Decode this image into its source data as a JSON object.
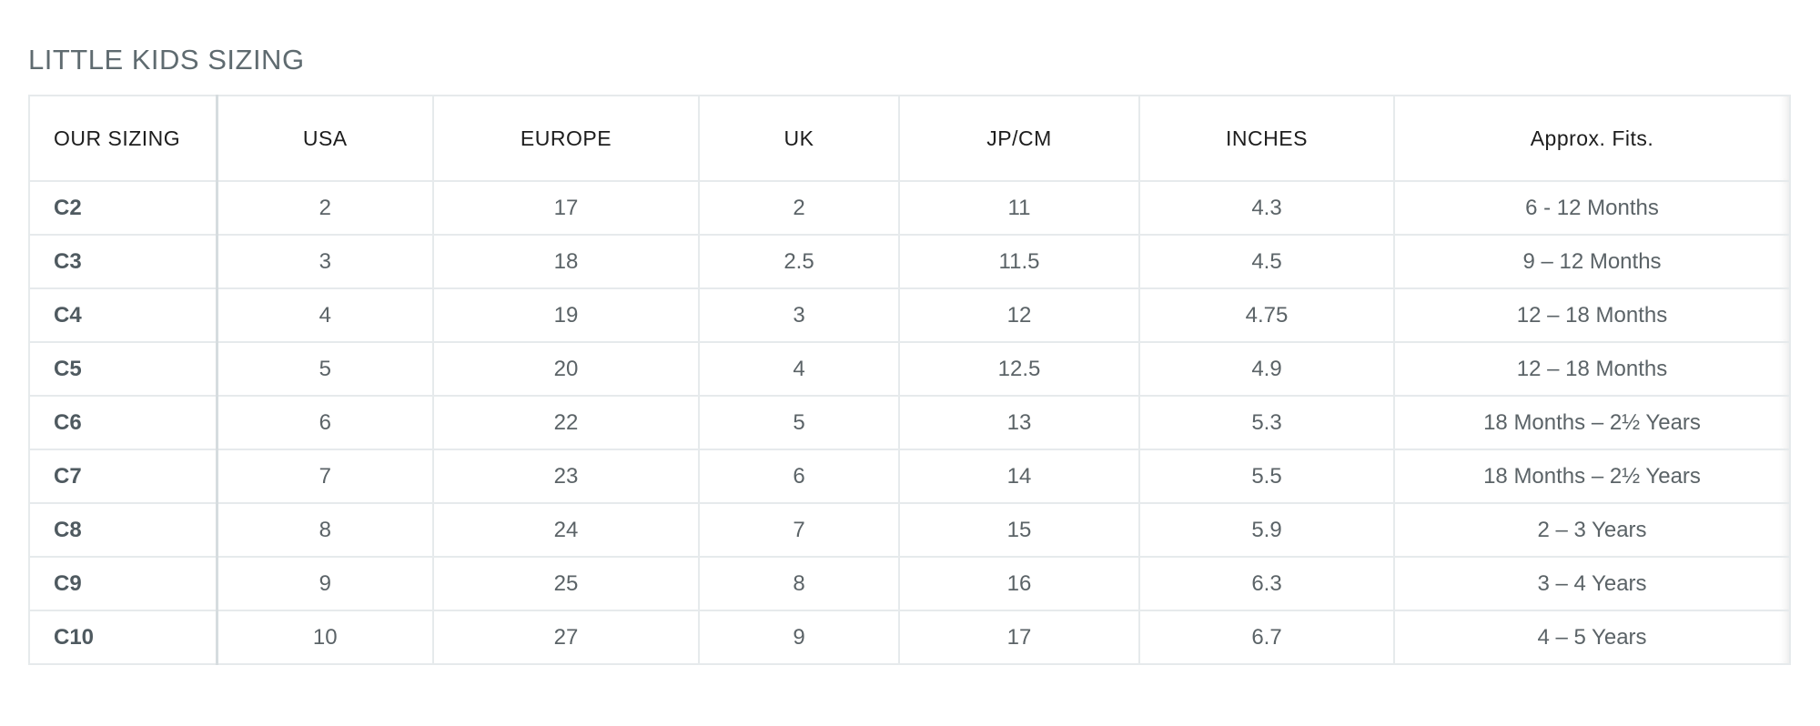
{
  "title": "LITTLE KIDS SIZING",
  "columns": [
    "OUR SIZING",
    "USA",
    "EUROPE",
    "UK",
    "JP/CM",
    "INCHES",
    "Approx. Fits."
  ],
  "rows": [
    [
      "C2",
      "2",
      "17",
      "2",
      "11",
      "4.3",
      "6 - 12 Months"
    ],
    [
      "C3",
      "3",
      "18",
      "2.5",
      "11.5",
      "4.5",
      "9 – 12 Months"
    ],
    [
      "C4",
      "4",
      "19",
      "3",
      "12",
      "4.75",
      "12 – 18 Months"
    ],
    [
      "C5",
      "5",
      "20",
      "4",
      "12.5",
      "4.9",
      "12 – 18 Months"
    ],
    [
      "C6",
      "6",
      "22",
      "5",
      "13",
      "5.3",
      "18 Months – 2½ Years"
    ],
    [
      "C7",
      "7",
      "23",
      "6",
      "14",
      "5.5",
      "18 Months – 2½ Years"
    ],
    [
      "C8",
      "8",
      "24",
      "7",
      "15",
      "5.9",
      "2 – 3 Years"
    ],
    [
      "C9",
      "9",
      "25",
      "8",
      "16",
      "6.3",
      "3 – 4 Years"
    ],
    [
      "C10",
      "10",
      "27",
      "9",
      "17",
      "6.7",
      "4 – 5 Years"
    ]
  ]
}
